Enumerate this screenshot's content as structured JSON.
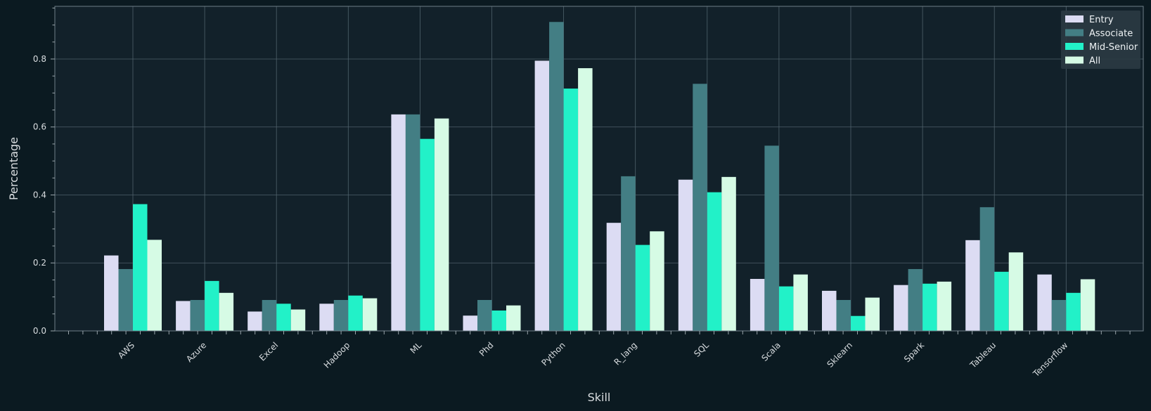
{
  "chart_data": {
    "type": "bar",
    "xlabel": "Skill",
    "ylabel": "Percentage",
    "ylim": [
      0,
      0.955
    ],
    "yticks": [
      "0.0",
      "0.2",
      "0.4",
      "0.6",
      "0.8"
    ],
    "ytick_values": [
      0,
      0.2,
      0.4,
      0.6,
      0.8
    ],
    "grid": true,
    "legend_position": "top-right",
    "categories": [
      "AWS",
      "Azure",
      "Excel",
      "Hadoop",
      "ML",
      "Phd",
      "Python",
      "R_lang",
      "SQL",
      "Scala",
      "Sklearn",
      "Spark",
      "Tableau",
      "Tensorflow"
    ],
    "series": [
      {
        "name": "Entry",
        "color": "#dcdcf3",
        "values": [
          0.222,
          0.088,
          0.057,
          0.08,
          0.637,
          0.045,
          0.795,
          0.318,
          0.445,
          0.153,
          0.118,
          0.135,
          0.267,
          0.166
        ]
      },
      {
        "name": "Associate",
        "color": "#437e84",
        "values": [
          0.182,
          0.091,
          0.091,
          0.091,
          0.637,
          0.091,
          0.909,
          0.455,
          0.727,
          0.545,
          0.091,
          0.182,
          0.364,
          0.091
        ]
      },
      {
        "name": "Mid-Senior",
        "color": "#22f1c8",
        "values": [
          0.373,
          0.147,
          0.08,
          0.104,
          0.565,
          0.06,
          0.713,
          0.253,
          0.408,
          0.131,
          0.044,
          0.139,
          0.174,
          0.112
        ]
      },
      {
        "name": "All",
        "color": "#d6fbe5",
        "values": [
          0.268,
          0.112,
          0.063,
          0.096,
          0.625,
          0.075,
          0.773,
          0.293,
          0.453,
          0.166,
          0.098,
          0.145,
          0.231,
          0.152
        ]
      }
    ]
  },
  "colors": {
    "page_background": "#0b1a21",
    "plot_background": "#12212a",
    "grid": "#4f616b",
    "axis": "#9aa5ab",
    "legend_background": "#2b3a42"
  }
}
